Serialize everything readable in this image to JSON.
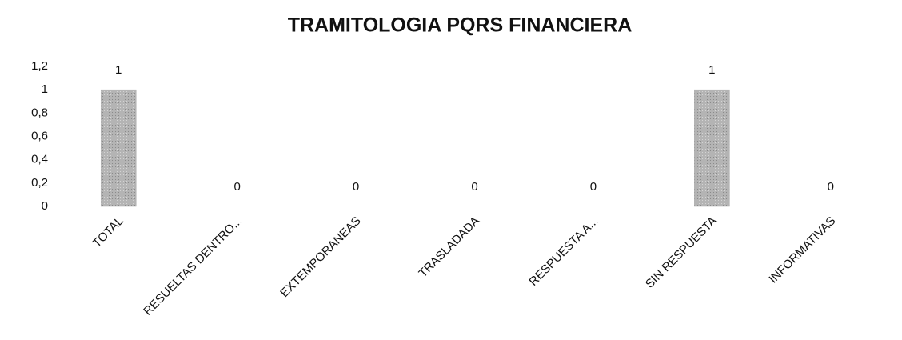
{
  "chart_data": {
    "type": "bar",
    "title": "TRAMITOLOGIA PQRS FINANCIERA",
    "categories": [
      "TOTAL",
      "RESUELTAS DENTRO...",
      "EXTEMPORANEAS",
      "TRASLADADA",
      "RESPUESTA A...",
      "SIN RESPUESTA",
      "INFORMATIVAS"
    ],
    "values": [
      1,
      0,
      0,
      0,
      0,
      1,
      0
    ],
    "color": "#a8a8a8",
    "ylim": [
      0,
      1.2
    ],
    "yticks": [
      0,
      {
        "value": 0.2,
        "label": "0,2"
      },
      {
        "value": 0.4,
        "label": "0,4"
      },
      {
        "value": 0.6,
        "label": "0,6"
      },
      {
        "value": 0.8,
        "label": "0,8"
      },
      1,
      {
        "value": 1.2,
        "label": "1,2"
      }
    ],
    "grid": false
  }
}
